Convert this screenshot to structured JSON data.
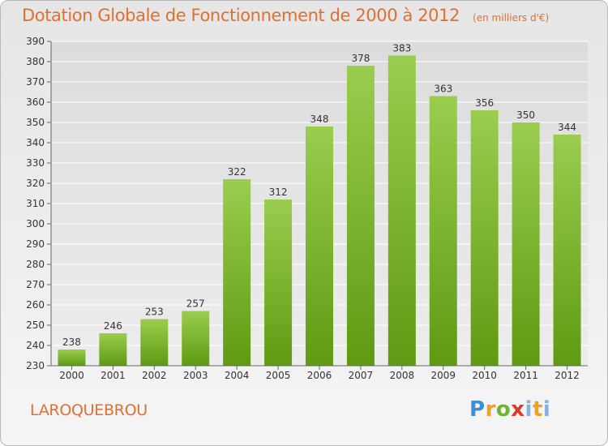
{
  "header": {
    "title": "Dotation Globale de Fonctionnement de 2000 à 2012",
    "subtitle": "(en milliers d'€)"
  },
  "commune": "LAROQUEBROU",
  "logo": "Proxiti",
  "colors": {
    "accent": "#e07030",
    "bar_top": "#9acd4e",
    "bar_bottom": "#5f9a12"
  },
  "chart_data": {
    "type": "bar",
    "categories": [
      "2000",
      "2001",
      "2002",
      "2003",
      "2004",
      "2005",
      "2006",
      "2007",
      "2008",
      "2009",
      "2010",
      "2011",
      "2012"
    ],
    "values": [
      238,
      246,
      253,
      257,
      322,
      312,
      348,
      378,
      383,
      363,
      356,
      350,
      344
    ],
    "ylim": [
      230,
      390
    ],
    "yticks": [
      230,
      240,
      250,
      260,
      270,
      280,
      290,
      300,
      310,
      320,
      330,
      340,
      350,
      360,
      370,
      380,
      390
    ],
    "grid": true,
    "data_labels": true
  }
}
